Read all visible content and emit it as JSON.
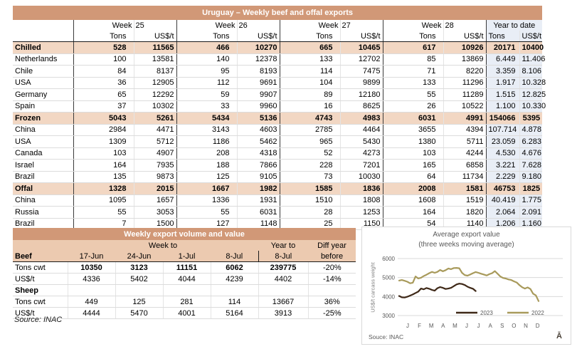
{
  "colors": {
    "title_bar": "#d19877",
    "section_row": "#f2d7c3",
    "weekly_header": "#eccab0",
    "ytd_background": "#e9eef6",
    "series_2023": "#3e2817",
    "series_2022": "#a89a5b"
  },
  "main_table": {
    "title": "Uruguay – Weekly beef and offal exports",
    "week_label": "Week",
    "week_numbers": [
      "25",
      "26",
      "27",
      "28"
    ],
    "ytd_label": "Year to date",
    "col_tons": "Tons",
    "col_usd": "US$/t",
    "rows": [
      {
        "label": "Chilled",
        "section": true,
        "cells": [
          "528",
          "11565",
          "466",
          "10270",
          "665",
          "10465",
          "617",
          "10926",
          "20171",
          "10400"
        ]
      },
      {
        "label": "Netherlands",
        "cells": [
          "100",
          "13581",
          "140",
          "12378",
          "133",
          "12702",
          "85",
          "13869",
          "6.449",
          "11.406"
        ]
      },
      {
        "label": "Chile",
        "cells": [
          "84",
          "8137",
          "95",
          "8193",
          "114",
          "7475",
          "71",
          "8220",
          "3.359",
          "8.106"
        ]
      },
      {
        "label": "USA",
        "cells": [
          "36",
          "12905",
          "112",
          "9691",
          "104",
          "9899",
          "133",
          "11296",
          "1.917",
          "10.328"
        ]
      },
      {
        "label": "Germany",
        "cells": [
          "65",
          "12292",
          "59",
          "9907",
          "89",
          "12180",
          "55",
          "11289",
          "1.515",
          "12.825"
        ]
      },
      {
        "label": "Spain",
        "cells": [
          "37",
          "10302",
          "33",
          "9960",
          "16",
          "8625",
          "26",
          "10522",
          "1.100",
          "10.330"
        ]
      },
      {
        "label": "Frozen",
        "section": true,
        "cells": [
          "5043",
          "5261",
          "5434",
          "5136",
          "4743",
          "4983",
          "6031",
          "4991",
          "154066",
          "5395"
        ]
      },
      {
        "label": "China",
        "cells": [
          "2984",
          "4471",
          "3143",
          "4603",
          "2785",
          "4464",
          "3655",
          "4394",
          "107.714",
          "4.878"
        ]
      },
      {
        "label": "USA",
        "cells": [
          "1309",
          "5712",
          "1186",
          "5462",
          "965",
          "5430",
          "1380",
          "5711",
          "23.059",
          "6.283"
        ]
      },
      {
        "label": "Canada",
        "cells": [
          "103",
          "4907",
          "208",
          "4318",
          "52",
          "4273",
          "103",
          "4244",
          "4.530",
          "4.676"
        ]
      },
      {
        "label": "Israel",
        "cells": [
          "164",
          "7935",
          "188",
          "7866",
          "228",
          "7201",
          "165",
          "6858",
          "3.221",
          "7.628"
        ]
      },
      {
        "label": "Brazil",
        "cells": [
          "135",
          "9873",
          "125",
          "9105",
          "73",
          "10030",
          "64",
          "11734",
          "2.229",
          "9.180"
        ]
      },
      {
        "label": "Offal",
        "section": true,
        "cells": [
          "1328",
          "2015",
          "1667",
          "1982",
          "1585",
          "1836",
          "2008",
          "1581",
          "46753",
          "1825"
        ]
      },
      {
        "label": "China",
        "cells": [
          "1095",
          "1657",
          "1336",
          "1931",
          "1510",
          "1808",
          "1608",
          "1519",
          "40.419",
          "1.775"
        ]
      },
      {
        "label": "Russia",
        "cells": [
          "55",
          "3053",
          "55",
          "6031",
          "28",
          "1253",
          "164",
          "1820",
          "2.064",
          "2.091"
        ]
      },
      {
        "label": "Brazil",
        "cells": [
          "7",
          "1500",
          "127",
          "1148",
          "25",
          "1150",
          "54",
          "1140",
          "1.206",
          "1.160"
        ]
      }
    ]
  },
  "weekly_table": {
    "title": "Weekly export volume and value",
    "week_to": "Week to",
    "year_to": "Year to",
    "diff_line1": "Diff year",
    "diff_line2": "before",
    "beef_label": "Beef",
    "dates": [
      "17-Jun",
      "24-Jun",
      "1-Jul",
      "8-Jul"
    ],
    "year_date": "8-Jul",
    "rows": [
      {
        "label": "Tons cwt",
        "values": [
          "10350",
          "3123",
          "11151",
          "6062",
          "239775",
          "-20%"
        ],
        "bold_count": 5
      },
      {
        "label": "US$/t",
        "values": [
          "4336",
          "5402",
          "4044",
          "4239",
          "4402",
          "-14%"
        ]
      },
      {
        "label": "Sheep",
        "header": true,
        "values": [
          "",
          "",
          "",
          "",
          "",
          ""
        ]
      },
      {
        "label": "Tons cwt",
        "values": [
          "449",
          "125",
          "281",
          "114",
          "13667",
          "36%"
        ]
      },
      {
        "label": "US$/t",
        "values": [
          "4444",
          "5470",
          "4001",
          "5164",
          "3913",
          "-25%"
        ]
      }
    ],
    "source": "Source: INAC"
  },
  "chart_data": {
    "type": "line",
    "title": "Average export  value",
    "subtitle": "(three weeks moving average)",
    "ylabel": "US$/t carcass weight",
    "ylim": [
      3000,
      6000
    ],
    "yticks": [
      6000,
      5000,
      4000,
      3000
    ],
    "grid": true,
    "legend_position": "bottom-right",
    "x_unit": "weeks (Jan–Dec)",
    "month_labels": [
      "J",
      "F",
      "M",
      "A",
      "M",
      "J",
      "J",
      "A",
      "S",
      "O",
      "N",
      "D"
    ],
    "series": [
      {
        "name": "2023",
        "color": "#3e2817",
        "values": [
          4030,
          3960,
          3950,
          3990,
          4050,
          4110,
          4190,
          4260,
          4420,
          4380,
          4450,
          4410,
          4350,
          4310,
          4440,
          4500,
          4460,
          4400,
          4420,
          4460,
          4550,
          4640,
          4680,
          4660,
          4610,
          4520,
          4460,
          4410,
          4290
        ]
      },
      {
        "name": "2022",
        "color": "#a89a5b",
        "values": [
          4840,
          4870,
          4830,
          4780,
          4700,
          4730,
          5060,
          4950,
          4990,
          5080,
          5150,
          5230,
          5300,
          5250,
          5300,
          5400,
          5330,
          5390,
          5480,
          5440,
          5500,
          5510,
          5490,
          5250,
          5130,
          5100,
          5160,
          5230,
          5290,
          5250,
          5200,
          5160,
          5110,
          5180,
          5230,
          5340,
          5200,
          5060,
          4980,
          4950,
          4900,
          4870,
          4800,
          4740,
          4600,
          4490,
          4420,
          4480,
          4400,
          4150,
          4060,
          3760
        ]
      }
    ],
    "source": "Souce: INAC",
    "logo": "Ā"
  }
}
